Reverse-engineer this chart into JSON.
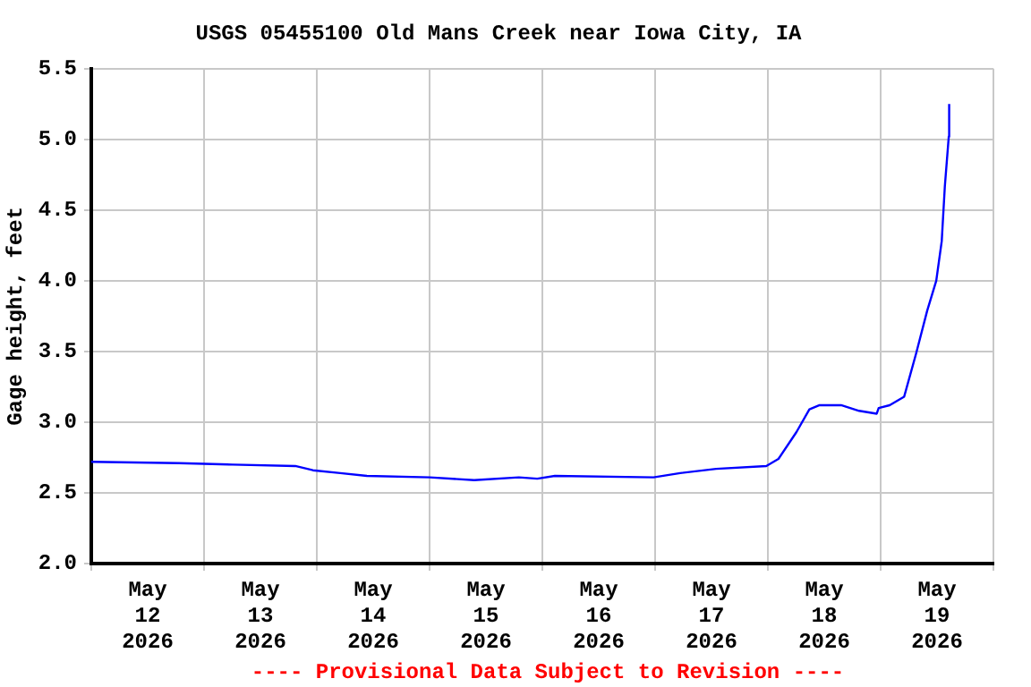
{
  "chart_data": {
    "type": "line",
    "title": "USGS 05455100 Old Mans Creek near Iowa City, IA",
    "ylabel": "Gage height, feet",
    "annotations": [
      "---- Provisional Data Subject to Revision ----"
    ],
    "x": [
      "2026-05-12T00:00",
      "2026-05-12T18:40",
      "2026-05-13T06:05",
      "2026-05-13T19:25",
      "2026-05-13T23:10",
      "2026-05-14T05:00",
      "2026-05-14T10:40",
      "2026-05-15T00:00",
      "2026-05-15T09:30",
      "2026-05-15T19:00",
      "2026-05-15T22:55",
      "2026-05-16T02:40",
      "2026-05-16T23:40",
      "2026-05-17T05:20",
      "2026-05-17T13:00",
      "2026-05-17T23:40",
      "2026-05-18T02:15",
      "2026-05-18T06:05",
      "2026-05-18T08:50",
      "2026-05-18T11:00",
      "2026-05-18T15:35",
      "2026-05-18T19:25",
      "2026-05-18T23:10",
      "2026-05-18T23:35",
      "2026-05-19T01:55",
      "2026-05-19T05:00",
      "2026-05-19T07:35",
      "2026-05-19T09:55",
      "2026-05-19T11:50",
      "2026-05-19T13:00",
      "2026-05-19T13:40",
      "2026-05-19T14:30",
      "2026-05-19T14:35"
    ],
    "series": [
      {
        "color": "#0000ff",
        "values": [
          2.72,
          2.71,
          2.7,
          2.69,
          2.66,
          2.64,
          2.62,
          2.61,
          2.59,
          2.61,
          2.6,
          2.62,
          2.61,
          2.64,
          2.67,
          2.69,
          2.74,
          2.93,
          3.09,
          3.12,
          3.12,
          3.08,
          3.06,
          3.1,
          3.12,
          3.18,
          3.49,
          3.79,
          4.0,
          4.28,
          4.67,
          5.02,
          5.25
        ]
      }
    ],
    "xlim": [
      "2026-05-12T00:00",
      "2026-05-20T00:00"
    ],
    "xticks": [
      {
        "value": "2026-05-12T00:00",
        "label": null
      },
      {
        "value": "2026-05-12T12:00",
        "label": "May 12 2026"
      },
      {
        "value": "2026-05-13T00:00",
        "label": null
      },
      {
        "value": "2026-05-13T12:00",
        "label": "May 13 2026"
      },
      {
        "value": "2026-05-14T00:00",
        "label": null
      },
      {
        "value": "2026-05-14T12:00",
        "label": "May 14 2026"
      },
      {
        "value": "2026-05-15T00:00",
        "label": null
      },
      {
        "value": "2026-05-15T12:00",
        "label": "May 15 2026"
      },
      {
        "value": "2026-05-16T00:00",
        "label": null
      },
      {
        "value": "2026-05-16T12:00",
        "label": "May 16 2026"
      },
      {
        "value": "2026-05-17T00:00",
        "label": null
      },
      {
        "value": "2026-05-17T12:00",
        "label": "May 17 2026"
      },
      {
        "value": "2026-05-18T00:00",
        "label": null
      },
      {
        "value": "2026-05-18T12:00",
        "label": "May 18 2026"
      },
      {
        "value": "2026-05-19T00:00",
        "label": null
      },
      {
        "value": "2026-05-19T12:00",
        "label": "May 19 2026"
      },
      {
        "value": "2026-05-20T00:00",
        "label": null
      }
    ],
    "ylim": [
      2.0,
      5.5
    ],
    "yticks": [
      {
        "value": 2.0,
        "label": "2.0"
      },
      {
        "value": 2.5,
        "label": "2.5"
      },
      {
        "value": 3.0,
        "label": "3.0"
      },
      {
        "value": 3.5,
        "label": "3.5"
      },
      {
        "value": 4.0,
        "label": "4.0"
      },
      {
        "value": 4.5,
        "label": "4.5"
      },
      {
        "value": 5.0,
        "label": "5.0"
      },
      {
        "value": 5.5,
        "label": "5.5"
      }
    ],
    "grid": true,
    "marker": "none",
    "line_style": "solid",
    "legend": false
  }
}
